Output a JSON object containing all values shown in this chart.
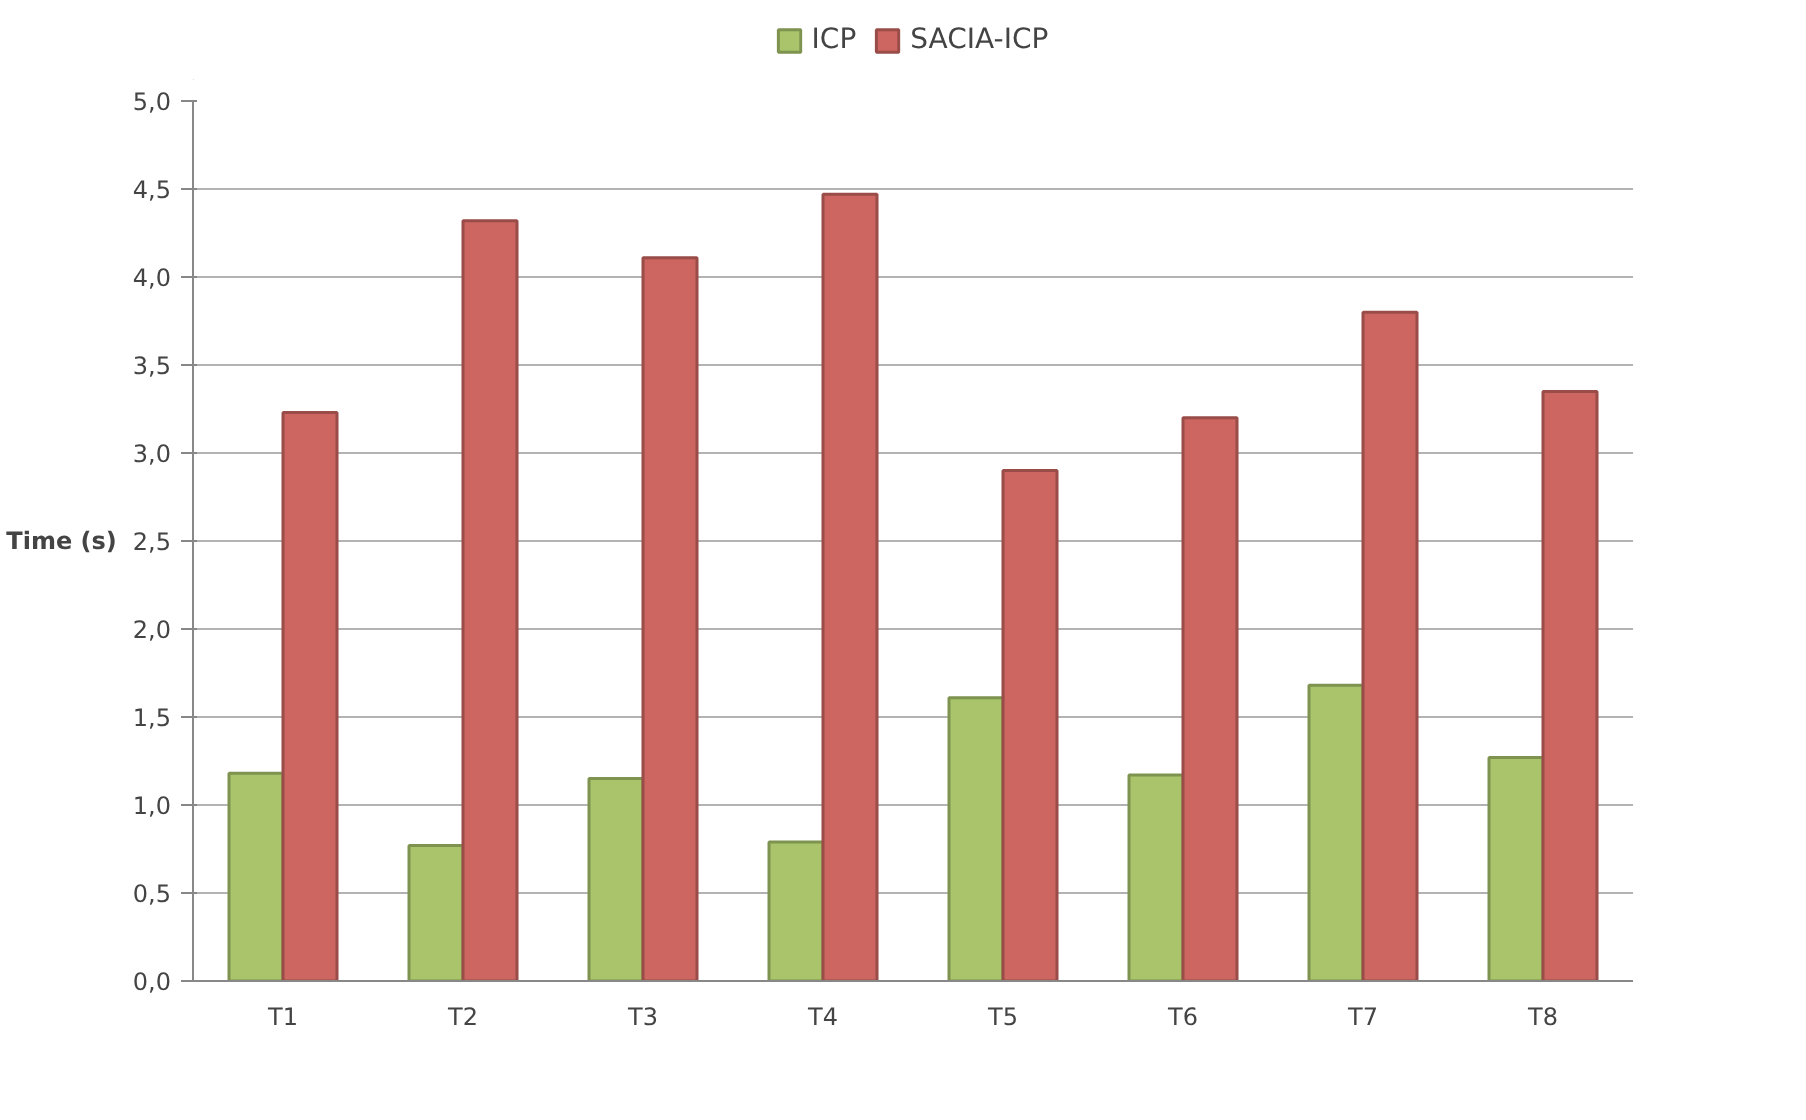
{
  "chart_data": {
    "type": "bar",
    "ylabel": "Time (s)",
    "categories": [
      "T1",
      "T2",
      "T3",
      "T4",
      "T5",
      "T6",
      "T7",
      "T8"
    ],
    "series": [
      {
        "name": "ICP",
        "color": "#a9c46a",
        "values": [
          1.18,
          0.77,
          1.15,
          0.79,
          1.61,
          1.17,
          1.68,
          1.27
        ]
      },
      {
        "name": "SACIA-ICP",
        "color": "#cd6660",
        "values": [
          3.23,
          4.32,
          4.11,
          4.47,
          2.9,
          3.2,
          3.8,
          3.35
        ]
      }
    ],
    "ylim": [
      0,
      5
    ],
    "yticks": [
      {
        "value": 0,
        "label": "0,0"
      },
      {
        "value": 0.5,
        "label": "0,5"
      },
      {
        "value": 1,
        "label": "1,0"
      },
      {
        "value": 1.5,
        "label": "1,5"
      },
      {
        "value": 2,
        "label": "2,0"
      },
      {
        "value": 2.5,
        "label": "2,5"
      },
      {
        "value": 3,
        "label": "3,0"
      },
      {
        "value": 3.5,
        "label": "3,5"
      },
      {
        "value": 4,
        "label": "4,0"
      },
      {
        "value": 4.5,
        "label": "4,5"
      },
      {
        "value": 5,
        "label": "5,0"
      }
    ],
    "grid": "y",
    "legend": "top"
  }
}
